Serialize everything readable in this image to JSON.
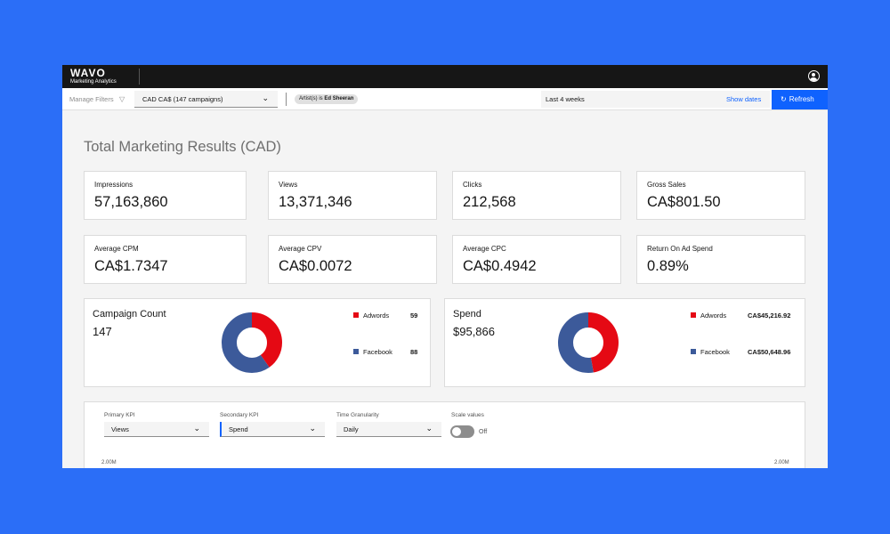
{
  "app": {
    "brand": "WAVO",
    "subtitle": "Marketing Analytics"
  },
  "filters": {
    "manage_label": "Manage Filters",
    "campaign_select": "CAD CA$ (147 campaigns)",
    "tag_key": "Artist(s)",
    "tag_op": "is",
    "tag_value": "Ed Sheeran",
    "date_range": "Last 4 weeks",
    "show_dates": "Show dates",
    "refresh": "Refresh"
  },
  "page": {
    "title": "Total Marketing Results (CAD)"
  },
  "kpis": [
    {
      "label": "Impressions",
      "value": "57,163,860"
    },
    {
      "label": "Views",
      "value": "13,371,346"
    },
    {
      "label": "Clicks",
      "value": "212,568"
    },
    {
      "label": "Gross Sales",
      "value": "CA$801.50"
    },
    {
      "label": "Average CPM",
      "value": "CA$1.7347"
    },
    {
      "label": "Average CPV",
      "value": "CA$0.0072"
    },
    {
      "label": "Average CPC",
      "value": "CA$0.4942"
    },
    {
      "label": "Return On Ad Spend",
      "value": "0.89%"
    }
  ],
  "campaign_count": {
    "title": "Campaign Count",
    "value": "147",
    "legend": [
      {
        "label": "Adwords",
        "value": "59",
        "num": 59,
        "color": "#e50914"
      },
      {
        "label": "Facebook",
        "value": "88",
        "num": 88,
        "color": "#3c5a9a"
      }
    ]
  },
  "spend": {
    "title": "Spend",
    "value": "$95,866",
    "legend": [
      {
        "label": "Adwords",
        "value": "CA$45,216.92",
        "num": 45216.92,
        "color": "#e50914"
      },
      {
        "label": "Facebook",
        "value": "CA$50,648.96",
        "num": 50648.96,
        "color": "#3c5a9a"
      }
    ]
  },
  "controls": {
    "primary_label": "Primary KPI",
    "primary_value": "Views",
    "secondary_label": "Secondary KPI",
    "secondary_value": "Spend",
    "granularity_label": "Time Granularity",
    "granularity_value": "Daily",
    "scale_label": "Scale values",
    "scale_state": "Off",
    "axis_left": "2.00M",
    "axis_right": "2.00M"
  }
}
